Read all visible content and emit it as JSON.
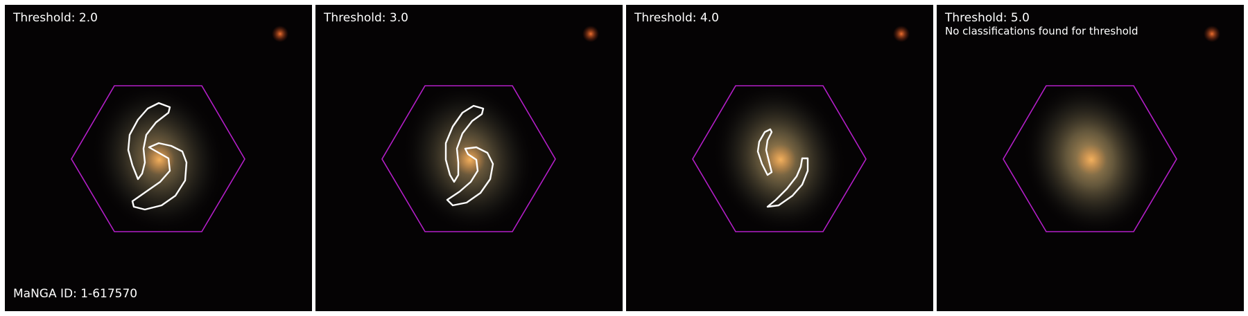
{
  "figure": {
    "manga_id_text": "MaNGA ID: 1-617570",
    "panels": [
      {
        "threshold_label": "Threshold: 2.0",
        "note": "",
        "arm_contours": 2
      },
      {
        "threshold_label": "Threshold: 3.0",
        "note": "",
        "arm_contours": 2
      },
      {
        "threshold_label": "Threshold: 4.0",
        "note": "",
        "arm_contours": 2
      },
      {
        "threshold_label": "Threshold: 5.0",
        "note": "No classifications found for threshold",
        "arm_contours": 0
      }
    ],
    "colors": {
      "hexagon": "#b41ec8",
      "contour": "#ffffff",
      "sky": "#050304",
      "galaxy_core": "#e09a48",
      "star": "#e0652a"
    }
  }
}
